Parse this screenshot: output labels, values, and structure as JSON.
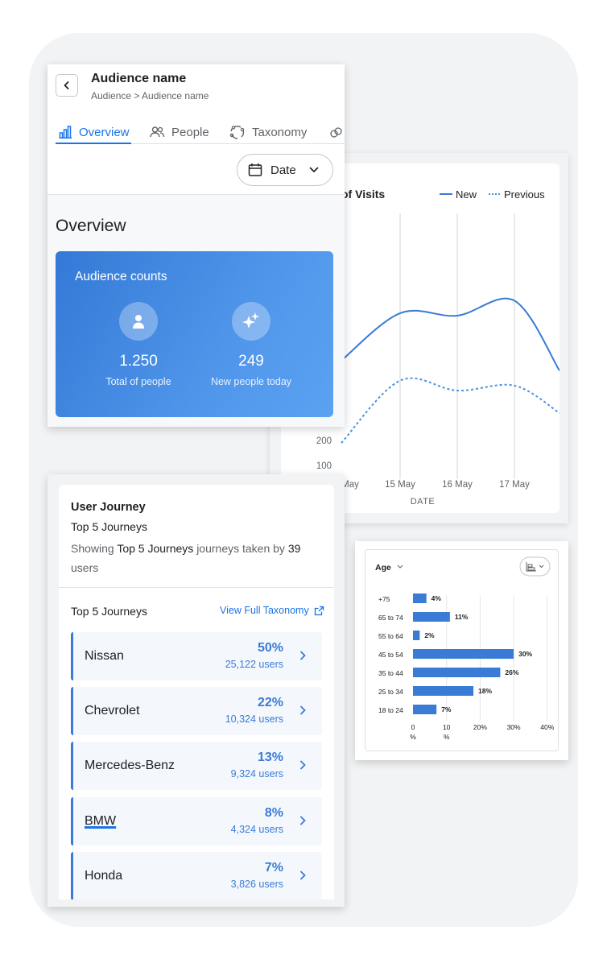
{
  "colors": {
    "accent": "#1a73e8",
    "bar": "#3a7bd5",
    "line_new": "#3a7bd5",
    "line_previous": "#4a90e2"
  },
  "overview_card": {
    "title": "Audience name",
    "breadcrumb": "Audience > Audience name",
    "tabs": [
      {
        "label": "Overview",
        "icon": "bar-chart-icon",
        "active": true
      },
      {
        "label": "People",
        "icon": "people-icon",
        "active": false
      },
      {
        "label": "Taxonomy",
        "icon": "taxonomy-icon",
        "active": false
      }
    ],
    "date_button": "Date",
    "section_heading": "Overview",
    "audience_counts": {
      "title": "Audience counts",
      "stats": [
        {
          "value": "1.250",
          "label": "Total of people",
          "icon": "person-icon"
        },
        {
          "value": "249",
          "label": "New people today",
          "icon": "sparkle-icon"
        }
      ]
    }
  },
  "visits_chart_title": "of Visits",
  "chart_data": [
    {
      "type": "line",
      "title": "of Visits",
      "xlabel": "DATE",
      "x_ticks": [
        "May",
        "15 May",
        "16 May",
        "17 May"
      ],
      "y_ticks": [
        "200",
        "100"
      ],
      "legend": {
        "position": "top-right",
        "entries": [
          "New",
          "Previous"
        ]
      },
      "grid": "vertical",
      "series": [
        {
          "name": "New",
          "style": "solid",
          "values": [
            520,
            710,
            700,
            760,
            480
          ]
        },
        {
          "name": "Previous",
          "style": "dotted",
          "values": [
            190,
            440,
            400,
            420,
            310
          ]
        }
      ]
    },
    {
      "type": "bar",
      "orientation": "horizontal",
      "title": "Age",
      "categories": [
        "+75",
        "65 to 74",
        "55 to 64",
        "45 to 54",
        "35 to 44",
        "25 to 34",
        "18 to 24"
      ],
      "values": [
        4,
        11,
        2,
        30,
        26,
        18,
        7
      ],
      "value_labels": [
        "4%",
        "11%",
        "2%",
        "30%",
        "26%",
        "18%",
        "7%"
      ],
      "x_ticks": [
        "0\n%",
        "10\n%",
        "20%",
        "30%",
        "40%"
      ],
      "xlim": [
        0,
        40
      ],
      "grid": "vertical"
    }
  ],
  "journey_card": {
    "title": "User Journey",
    "subtitle": "Top 5 Journeys",
    "desc_prefix": "Showing",
    "desc_bold1": "Top 5 Journeys",
    "desc_mid": "journeys taken by",
    "desc_bold2": "39",
    "desc_suffix": "users",
    "list_title": "Top 5 Journeys",
    "view_link": "View Full Taxonomy",
    "items": [
      {
        "name": "Nissan",
        "percent": "50%",
        "users": "25,122 users"
      },
      {
        "name": "Chevrolet",
        "percent": "22%",
        "users": "10,324 users"
      },
      {
        "name": "Mercedes-Benz",
        "percent": "13%",
        "users": "9,324 users"
      },
      {
        "name": "BMW",
        "percent": "8%",
        "users": "4,324 users"
      },
      {
        "name": "Honda",
        "percent": "7%",
        "users": "3,826 users"
      }
    ]
  }
}
